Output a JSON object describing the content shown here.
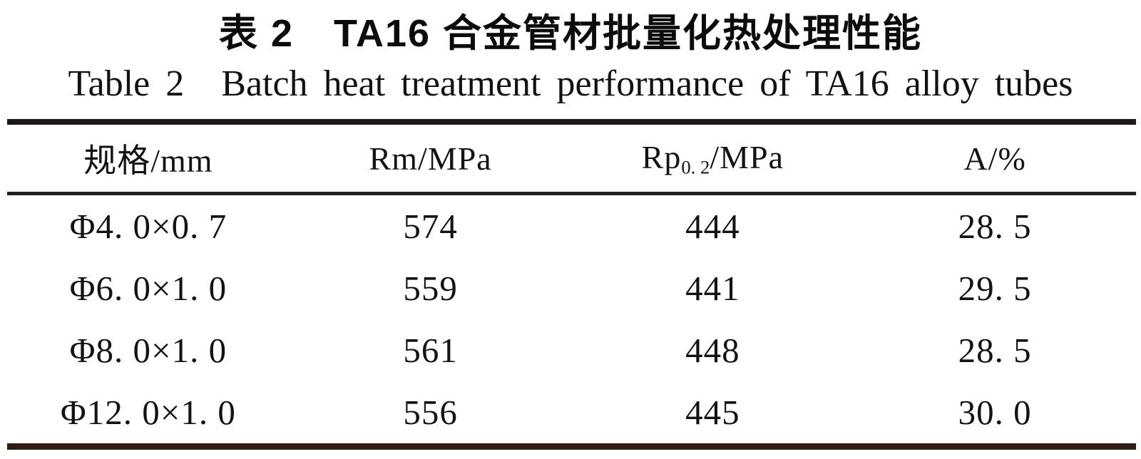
{
  "title": {
    "zh": "表 2 TA16 合金管材批量化热处理性能",
    "en": "Table 2 Batch heat treatment performance of TA16 alloy tubes"
  },
  "table": {
    "header": {
      "spec": "规格/mm",
      "rm": "Rm/MPa",
      "rp": {
        "base": "Rp",
        "sub": "0. 2",
        "rest": "/MPa"
      },
      "a": "A/%"
    },
    "rows": [
      [
        "Φ4. 0×0. 7",
        "574",
        "444",
        "28. 5"
      ],
      [
        "Φ6. 0×1. 0",
        "559",
        "441",
        "29. 5"
      ],
      [
        "Φ8. 0×1. 0",
        "561",
        "448",
        "28. 5"
      ],
      [
        "Φ12. 0×1. 0",
        "556",
        "445",
        "30. 0"
      ]
    ]
  },
  "colors": {
    "top_rule": "#1b1817",
    "mid_rule": "#232020",
    "bottom_rule": "#2d1d14",
    "text": "#151312",
    "background": "#ffffff"
  }
}
